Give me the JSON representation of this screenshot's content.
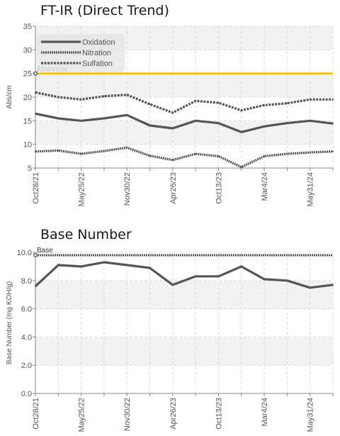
{
  "chart_data": [
    {
      "type": "line",
      "title": "FT-IR (Direct Trend)",
      "ylabel": "Abs/cm",
      "xlabel": "",
      "ylim": [
        5,
        35
      ],
      "yticks": [
        5,
        10,
        15,
        20,
        25,
        30,
        35
      ],
      "x_tick_labels": [
        "Oct28/21",
        "May25/22",
        "Nov30/22",
        "Apr26/23",
        "Oct13/23",
        "Mar4/24",
        "May31/24"
      ],
      "grid": true,
      "legend_position": "top-left",
      "limit_line": {
        "label": "Abnormal",
        "value": 25,
        "color": "#f5b800"
      },
      "series": [
        {
          "name": "Oxidation",
          "style": "solid",
          "color": "#555555",
          "values": [
            16.5,
            15.5,
            15.0,
            15.5,
            16.2,
            14.0,
            13.4,
            15.0,
            14.5,
            12.6,
            13.8,
            14.5,
            15.0,
            14.4
          ]
        },
        {
          "name": "Nitration",
          "style": "dotted",
          "color": "#555555",
          "values": [
            8.5,
            8.7,
            8.0,
            8.6,
            9.3,
            7.6,
            6.7,
            8.0,
            7.5,
            5.2,
            7.5,
            8.0,
            8.3,
            8.5
          ]
        },
        {
          "name": "Sulfation",
          "style": "dashed",
          "color": "#555555",
          "values": [
            21.0,
            20.0,
            19.5,
            20.2,
            20.5,
            18.5,
            16.7,
            19.2,
            18.8,
            17.2,
            18.3,
            18.7,
            19.5,
            19.5
          ]
        }
      ]
    },
    {
      "type": "line",
      "title": "Base Number",
      "ylabel": "Base Number (mg KOH/g)",
      "xlabel": "",
      "ylim": [
        0,
        10
      ],
      "yticks": [
        0,
        2,
        4,
        6,
        8,
        10
      ],
      "ytick_labels": [
        "0.0",
        "2.0",
        "4.0",
        "6.0",
        "8.0",
        "10.0"
      ],
      "x_tick_labels": [
        "Oct28/21",
        "May25/22",
        "Nov30/22",
        "Apr26/23",
        "Oct13/23",
        "Mar4/24",
        "May31/24"
      ],
      "grid": true,
      "reference_line": {
        "label": "Base",
        "value": 9.8,
        "color": "#555555"
      },
      "series": [
        {
          "style": "solid",
          "color": "#555555",
          "values": [
            7.6,
            9.1,
            9.0,
            9.3,
            9.1,
            8.9,
            7.7,
            8.3,
            8.3,
            9.0,
            8.1,
            8.0,
            7.5,
            7.7
          ]
        }
      ]
    }
  ]
}
